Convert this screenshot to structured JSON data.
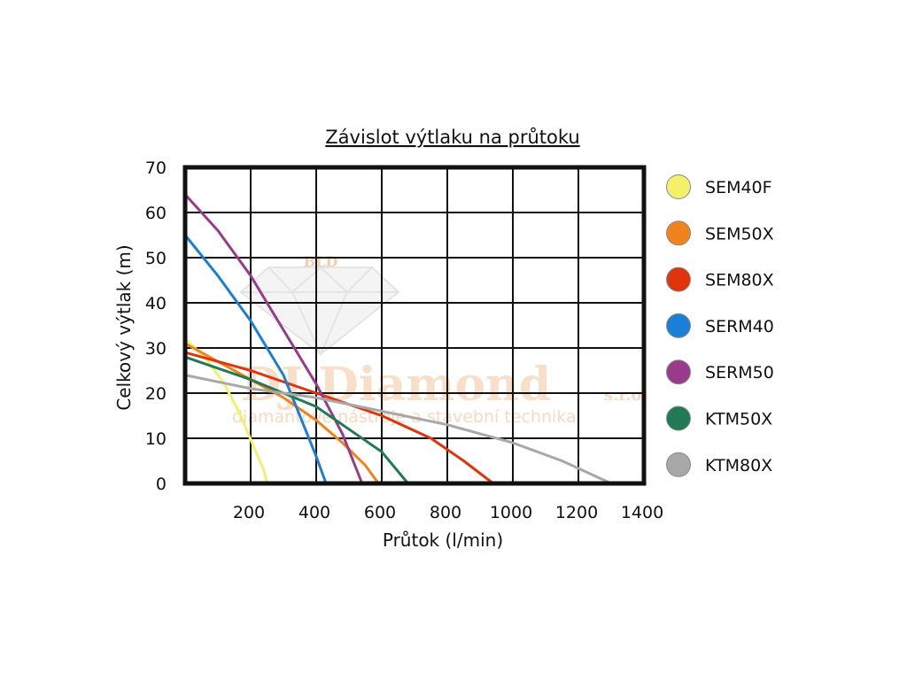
{
  "chart_data": {
    "type": "line",
    "title": "Závislot výtlaku na průtoku",
    "xlabel": "Průtok (l/min)",
    "ylabel": "Celkový výtlak (m)",
    "xlim": [
      0,
      1400
    ],
    "ylim": [
      0,
      70
    ],
    "x_ticks": [
      200,
      400,
      600,
      800,
      1000,
      1200,
      1400
    ],
    "y_ticks": [
      0,
      10,
      20,
      30,
      40,
      50,
      60,
      70
    ],
    "grid": true,
    "legend_position": "right",
    "series": [
      {
        "name": "SEM40F",
        "color": "#f5f06a",
        "points": [
          [
            0,
            32
          ],
          [
            60,
            28
          ],
          [
            120,
            22
          ],
          [
            170,
            15
          ],
          [
            210,
            8
          ],
          [
            240,
            3
          ],
          [
            250,
            0
          ]
        ]
      },
      {
        "name": "SEM50X",
        "color": "#f0841c",
        "points": [
          [
            0,
            31
          ],
          [
            100,
            27
          ],
          [
            200,
            23
          ],
          [
            300,
            19
          ],
          [
            400,
            14
          ],
          [
            480,
            9
          ],
          [
            550,
            4
          ],
          [
            590,
            0
          ]
        ]
      },
      {
        "name": "SEM80X",
        "color": "#e0350c",
        "points": [
          [
            0,
            29
          ],
          [
            200,
            25
          ],
          [
            400,
            20
          ],
          [
            600,
            15
          ],
          [
            750,
            10
          ],
          [
            850,
            5
          ],
          [
            940,
            0
          ]
        ]
      },
      {
        "name": "SERM40",
        "color": "#1a7fd6",
        "points": [
          [
            0,
            55
          ],
          [
            100,
            46
          ],
          [
            200,
            36
          ],
          [
            300,
            24
          ],
          [
            350,
            15
          ],
          [
            400,
            6
          ],
          [
            430,
            0
          ]
        ]
      },
      {
        "name": "SERM50",
        "color": "#9a3a8a",
        "points": [
          [
            0,
            64
          ],
          [
            100,
            56
          ],
          [
            200,
            46
          ],
          [
            300,
            34
          ],
          [
            400,
            22
          ],
          [
            480,
            11
          ],
          [
            540,
            0
          ]
        ]
      },
      {
        "name": "KTM50X",
        "color": "#1f7a55",
        "points": [
          [
            0,
            28
          ],
          [
            200,
            23
          ],
          [
            400,
            17
          ],
          [
            500,
            12
          ],
          [
            600,
            7
          ],
          [
            680,
            0
          ]
        ]
      },
      {
        "name": "KTM80X",
        "color": "#a8a8a8",
        "points": [
          [
            0,
            24
          ],
          [
            200,
            21
          ],
          [
            400,
            19
          ],
          [
            600,
            16
          ],
          [
            800,
            13
          ],
          [
            1000,
            9
          ],
          [
            1150,
            5
          ],
          [
            1300,
            0
          ]
        ]
      }
    ]
  },
  "watermark": {
    "brand": "DJ Diamond",
    "suffix": "s.r.o.",
    "tagline": "diamantové nástroje a stavební technika",
    "logo_text": "BLD"
  }
}
